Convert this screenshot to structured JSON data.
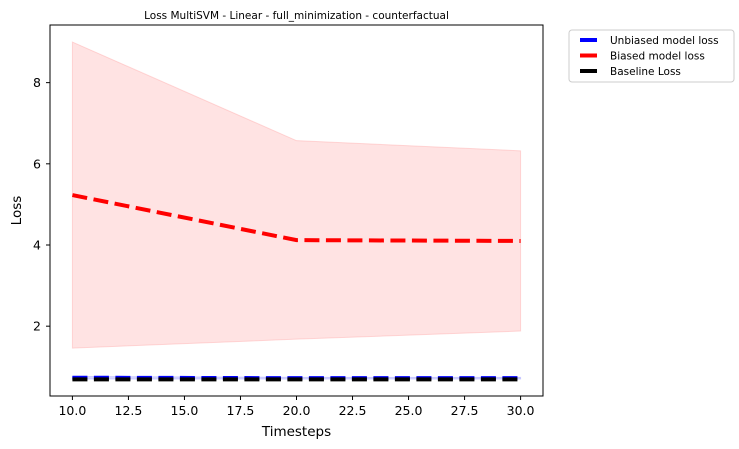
{
  "chart_data": {
    "type": "line",
    "title": "Loss MultiSVM - Linear - full_minimization - counterfactual",
    "xlabel": "Timesteps",
    "ylabel": "Loss",
    "x": [
      10,
      20,
      30
    ],
    "xlim": [
      9.0,
      31.0
    ],
    "ylim": [
      0.28,
      9.42
    ],
    "xticks": [
      10.0,
      12.5,
      15.0,
      17.5,
      20.0,
      22.5,
      25.0,
      27.5,
      30.0
    ],
    "xtick_labels": [
      "10.0",
      "12.5",
      "15.0",
      "17.5",
      "20.0",
      "22.5",
      "25.0",
      "27.5",
      "30.0"
    ],
    "yticks": [
      2,
      4,
      6,
      8
    ],
    "ytick_labels": [
      "2",
      "4",
      "6",
      "8"
    ],
    "grid": false,
    "legend_position": "outside-top-right",
    "series": [
      {
        "name": "Unbiased model loss",
        "color": "#0000ff",
        "linestyle": "dashed",
        "values": [
          0.73,
          0.72,
          0.72
        ],
        "band_lower": [
          0.7,
          0.7,
          0.7
        ],
        "band_upper": [
          0.76,
          0.74,
          0.74
        ],
        "band_color": "#8080ff"
      },
      {
        "name": "Biased model loss",
        "color": "#ff0000",
        "linestyle": "dashed",
        "values": [
          5.23,
          4.12,
          4.1
        ],
        "band_lower": [
          1.46,
          1.68,
          1.88
        ],
        "band_upper": [
          9.0,
          6.57,
          6.32
        ],
        "band_color": "#ff9999"
      },
      {
        "name": "Baseline Loss",
        "color": "#000000",
        "linestyle": "dashed",
        "values": [
          0.69,
          0.69,
          0.69
        ]
      }
    ]
  }
}
